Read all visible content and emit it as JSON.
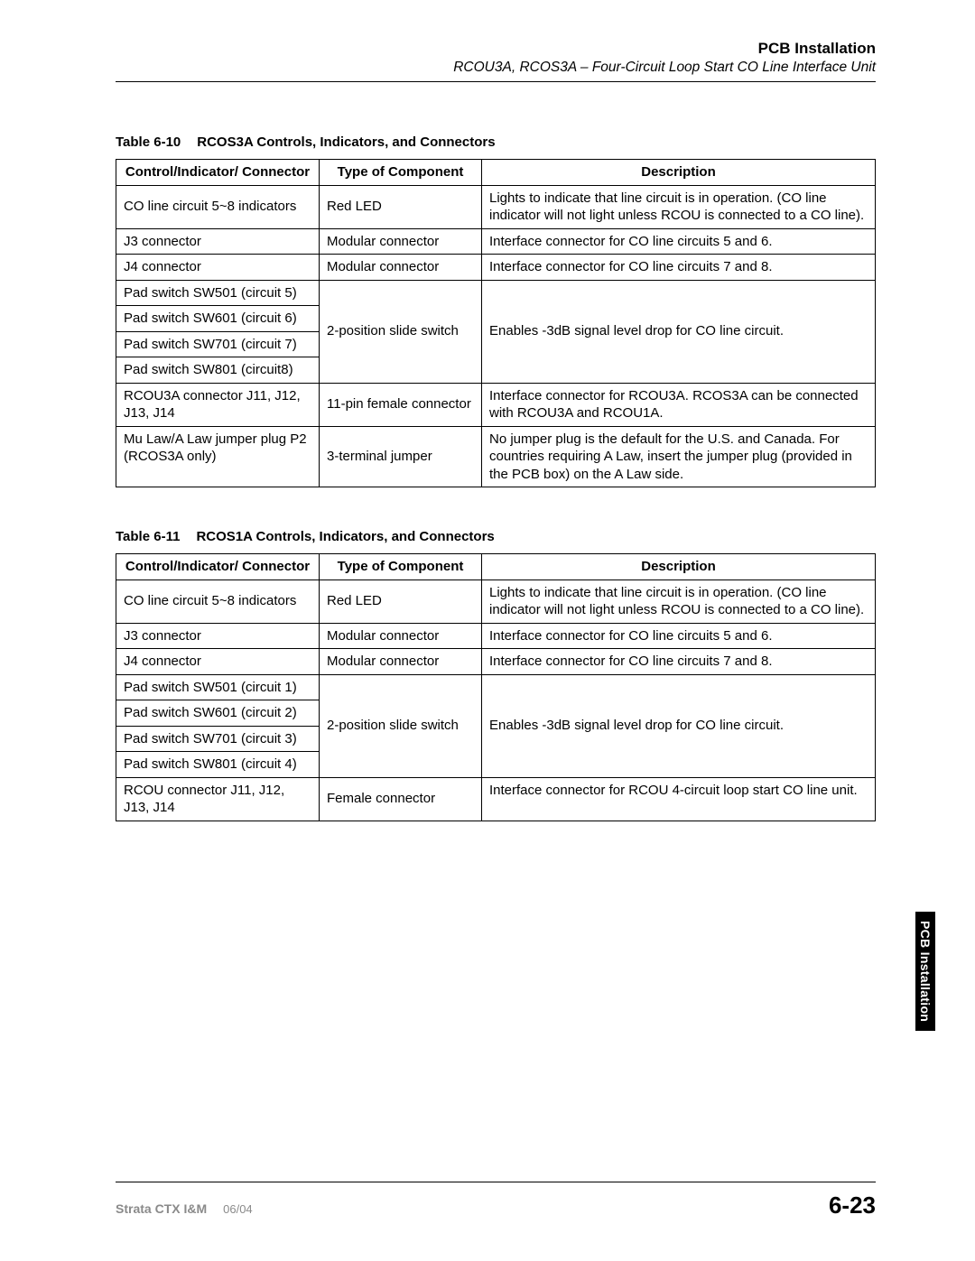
{
  "header": {
    "title": "PCB Installation",
    "subtitle": "RCOU3A, RCOS3A – Four-Circuit Loop Start CO Line Interface Unit"
  },
  "table10": {
    "caption_num": "Table 6-10",
    "caption_text": "RCOS3A Controls, Indicators, and Connectors",
    "headers": {
      "c1": "Control/Indicator/ Connector",
      "c2": "Type of Component",
      "c3": "Description"
    },
    "r1": {
      "c1": "CO line circuit 5~8 indicators",
      "c2": "Red LED",
      "c3": "Lights to indicate that line circuit is in operation. (CO line indicator will not light unless RCOU is connected to a CO line)."
    },
    "r2": {
      "c1": "J3 connector",
      "c2": "Modular connector",
      "c3": "Interface connector for CO line circuits 5 and 6."
    },
    "r3": {
      "c1": "J4 connector",
      "c2": "Modular connector",
      "c3": "Interface connector for CO line circuits 7 and 8."
    },
    "r4a": {
      "c1": "Pad switch SW501 (circuit 5)"
    },
    "r4b": {
      "c1": "Pad switch SW601 (circuit 6)"
    },
    "r4c": {
      "c1": "Pad switch SW701 (circuit 7)"
    },
    "r4d": {
      "c1": "Pad switch SW801 (circuit8)"
    },
    "r4_type": "2-position slide switch",
    "r4_desc": "Enables -3dB signal level drop for CO line circuit.",
    "r5": {
      "c1": "RCOU3A connector J11, J12, J13, J14",
      "c2": "11-pin female connector",
      "c3": "Interface connector for RCOU3A. RCOS3A can be connected with RCOU3A and RCOU1A."
    },
    "r6": {
      "c1": "Mu Law/A Law jumper plug P2\n(RCOS3A only)",
      "c2": "3-terminal jumper",
      "c3": "No jumper plug is the default for the U.S. and Canada. For countries requiring A Law, insert the jumper plug (provided in the PCB box) on the A Law side."
    }
  },
  "table11": {
    "caption_num": "Table 6-11",
    "caption_text": "RCOS1A Controls, Indicators, and Connectors",
    "headers": {
      "c1": "Control/Indicator/ Connector",
      "c2": "Type of Component",
      "c3": "Description"
    },
    "r1": {
      "c1": "CO line circuit 5~8 indicators",
      "c2": "Red LED",
      "c3": "Lights to indicate that line circuit is in operation. (CO line indicator will not light unless RCOU is connected to a CO line)."
    },
    "r2": {
      "c1": "J3 connector",
      "c2": "Modular connector",
      "c3": "Interface connector for CO line circuits 5 and 6."
    },
    "r3": {
      "c1": "J4 connector",
      "c2": "Modular connector",
      "c3": "Interface connector for CO line circuits 7 and 8."
    },
    "r4a": {
      "c1": "Pad switch SW501 (circuit 1)"
    },
    "r4b": {
      "c1": "Pad switch SW601 (circuit 2)"
    },
    "r4c": {
      "c1": "Pad switch SW701 (circuit 3)"
    },
    "r4d": {
      "c1": "Pad switch SW801 (circuit 4)"
    },
    "r4_type": "2-position slide switch",
    "r4_desc": "Enables -3dB signal level drop for CO line circuit.",
    "r5": {
      "c1": "RCOU connector J11, J12, J13, J14",
      "c2": "Female connector",
      "c3": "Interface connector for RCOU 4-circuit loop start CO line unit."
    }
  },
  "side_tab": "PCB Installation",
  "footer": {
    "doc": "Strata CTX I&M",
    "date": "06/04",
    "page": "6-23"
  }
}
